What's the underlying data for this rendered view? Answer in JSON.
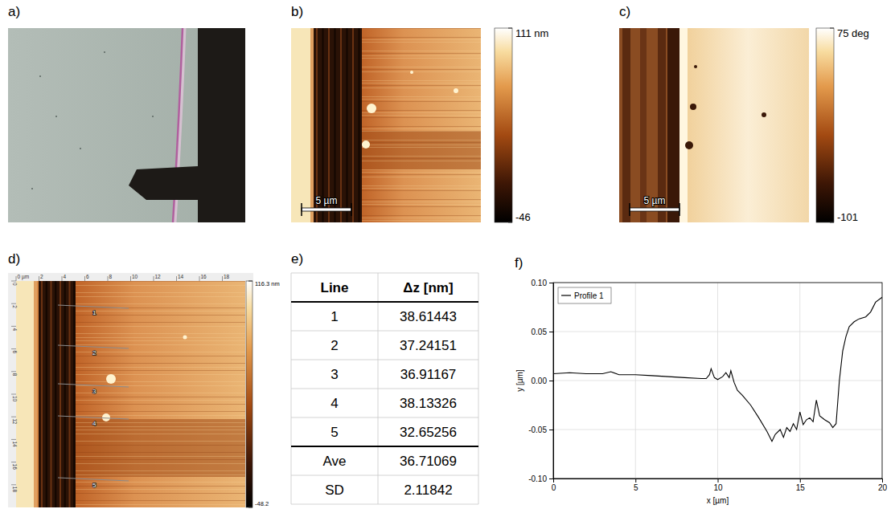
{
  "panels": {
    "a": {
      "label": "a)"
    },
    "b": {
      "label": "b)",
      "scale_bar": "5 µm",
      "colorbar": {
        "range": [
          -46,
          111
        ],
        "ticks": [
          {
            "value": 111,
            "label": "111 nm"
          },
          -46
        ]
      }
    },
    "c": {
      "label": "c)",
      "scale_bar": "5 µm",
      "colorbar": {
        "range": [
          -101,
          75
        ],
        "ticks": [
          {
            "value": 75,
            "label": "75 deg"
          },
          -101
        ]
      }
    },
    "d": {
      "label": "d)",
      "ruler_x": {
        "range": [
          0,
          20
        ],
        "ticks": [
          {
            "value": 0,
            "label": "0 µm"
          },
          2,
          4,
          6,
          8,
          10,
          12,
          14,
          16,
          18
        ]
      },
      "ruler_y": {
        "range": [
          0,
          20
        ],
        "ticks": [
          0,
          2,
          4,
          6,
          8,
          10,
          12,
          14,
          16,
          18
        ]
      },
      "colorbar": {
        "range": [
          -48.2,
          116.3
        ],
        "ticks": [
          {
            "value": 116.3,
            "label": "116.3 nm"
          },
          -48.2
        ]
      },
      "lines": [
        "1",
        "2",
        "3",
        "4",
        "5"
      ]
    },
    "e": {
      "label": "e)",
      "table": {
        "header": [
          "Line",
          "Δz [nm]"
        ],
        "rows": [
          [
            "1",
            38.61443
          ],
          [
            "2",
            37.24151
          ],
          [
            "3",
            36.91167
          ],
          [
            "4",
            38.13326
          ],
          [
            "5",
            32.65256
          ],
          [
            "Ave",
            36.71069
          ],
          [
            "SD",
            2.11842
          ]
        ]
      }
    },
    "f": {
      "label": "f)"
    }
  },
  "chart_data": {
    "type": "line",
    "xlabel": "x [µm]",
    "ylabel": "y [µm]",
    "x": [
      0,
      1,
      2,
      3,
      3.5,
      4,
      5,
      6,
      7,
      8,
      9,
      9.3,
      9.5,
      9.6,
      9.8,
      10,
      10.3,
      10.5,
      10.7,
      10.8,
      11,
      11.2,
      11.5,
      12,
      12.5,
      13,
      13.3,
      13.5,
      13.8,
      14,
      14.2,
      14.4,
      14.6,
      14.8,
      15,
      15.2,
      15.4,
      15.6,
      15.8,
      16,
      16.2,
      16.5,
      16.8,
      17,
      17.2,
      17.4,
      17.6,
      17.8,
      18,
      18.3,
      18.6,
      19,
      19.3,
      19.6,
      20
    ],
    "series": [
      {
        "name": "Profile 1",
        "color": "#000000",
        "values": [
          0.007,
          0.008,
          0.007,
          0.007,
          0.009,
          0.006,
          0.006,
          0.005,
          0.004,
          0.003,
          0.002,
          0.002,
          0.006,
          0.012,
          0.003,
          0.001,
          0.004,
          0.008,
          0.003,
          0.01,
          -0.002,
          -0.01,
          -0.015,
          -0.025,
          -0.038,
          -0.052,
          -0.062,
          -0.055,
          -0.05,
          -0.058,
          -0.048,
          -0.052,
          -0.044,
          -0.05,
          -0.032,
          -0.045,
          -0.04,
          -0.038,
          -0.042,
          -0.02,
          -0.036,
          -0.04,
          -0.043,
          -0.048,
          -0.044,
          0.0,
          0.03,
          0.045,
          0.055,
          0.06,
          0.063,
          0.065,
          0.07,
          0.08,
          0.085
        ]
      }
    ],
    "xlim": [
      0,
      20
    ],
    "xticks": [
      0,
      5,
      10,
      15,
      20
    ],
    "ylim": [
      -0.1,
      0.1
    ],
    "yticks": [
      {
        "value": -0.1,
        "label": "-0.10"
      },
      -0.05,
      {
        "value": 0,
        "label": "0.00"
      },
      0.05,
      {
        "value": 0.1,
        "label": "0.10"
      }
    ],
    "grid": true,
    "legend": "upper left"
  }
}
